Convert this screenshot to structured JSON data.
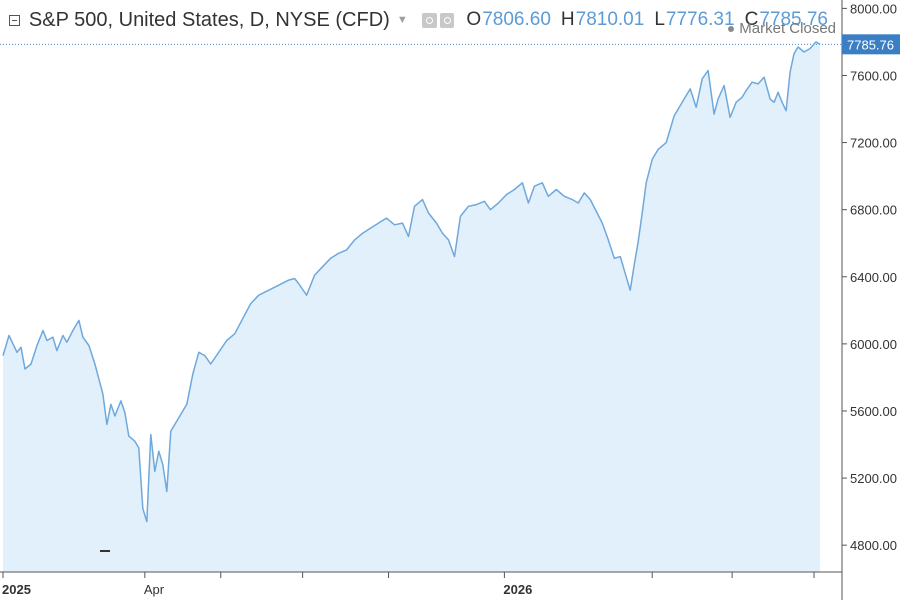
{
  "header": {
    "title": "S&P 500, United States, D, NYSE (CFD)",
    "open_key": "O",
    "open": "7806.60",
    "high_key": "H",
    "high": "7810.01",
    "low_key": "L",
    "low": "7776.31",
    "close_key": "C",
    "close": "7785.76",
    "status": "Market Closed",
    "collapse_icon": "collapse-icon",
    "settings_icon": "gear-icon"
  },
  "colors": {
    "line": "#6fa8dc",
    "area": "#e1f0fa",
    "price_tag": "#3a7fc4",
    "price_line": "#4a86c8"
  },
  "chart_data": {
    "type": "area",
    "symbol": "S&P 500",
    "last_price": 7785.76,
    "ylim": [
      4640,
      8050
    ],
    "y_ticks": [
      4800,
      5200,
      5600,
      6000,
      6400,
      6800,
      7200,
      7600,
      8000
    ],
    "y_tick_labels": [
      "4800.00",
      "5200.00",
      "5600.00",
      "6000.00",
      "6400.00",
      "6800.00",
      "7200.00",
      "7600.00",
      "8000.00"
    ],
    "x_labels": [
      {
        "label": "2025",
        "x": 0
      },
      {
        "label": "Apr",
        "x": 71
      },
      {
        "label": "2026",
        "x": 251
      }
    ],
    "x_unlabeled_ticks": [
      109,
      150,
      193,
      325,
      365,
      406
    ],
    "xlim": [
      0,
      415
    ],
    "series": [
      {
        "points": [
          [
            0,
            5930
          ],
          [
            3,
            6050
          ],
          [
            7,
            5950
          ],
          [
            9,
            5980
          ],
          [
            11,
            5850
          ],
          [
            14,
            5880
          ],
          [
            17,
            5990
          ],
          [
            20,
            6080
          ],
          [
            22,
            6020
          ],
          [
            25,
            6040
          ],
          [
            27,
            5960
          ],
          [
            30,
            6050
          ],
          [
            32,
            6010
          ],
          [
            35,
            6080
          ],
          [
            38,
            6140
          ],
          [
            40,
            6040
          ],
          [
            43,
            5990
          ],
          [
            46,
            5880
          ],
          [
            48,
            5790
          ],
          [
            50,
            5700
          ],
          [
            52,
            5520
          ],
          [
            54,
            5640
          ],
          [
            56,
            5570
          ],
          [
            59,
            5660
          ],
          [
            61,
            5590
          ],
          [
            63,
            5450
          ],
          [
            66,
            5420
          ],
          [
            68,
            5380
          ],
          [
            70,
            5020
          ],
          [
            72,
            4940
          ],
          [
            74,
            5460
          ],
          [
            76,
            5240
          ],
          [
            78,
            5360
          ],
          [
            80,
            5280
          ],
          [
            82,
            5120
          ],
          [
            84,
            5480
          ],
          [
            88,
            5560
          ],
          [
            92,
            5640
          ],
          [
            95,
            5820
          ],
          [
            98,
            5950
          ],
          [
            101,
            5930
          ],
          [
            104,
            5880
          ],
          [
            108,
            5950
          ],
          [
            112,
            6020
          ],
          [
            116,
            6060
          ],
          [
            120,
            6150
          ],
          [
            124,
            6240
          ],
          [
            128,
            6290
          ],
          [
            133,
            6320
          ],
          [
            138,
            6350
          ],
          [
            143,
            6380
          ],
          [
            146,
            6390
          ],
          [
            148,
            6360
          ],
          [
            152,
            6290
          ],
          [
            156,
            6410
          ],
          [
            160,
            6460
          ],
          [
            164,
            6510
          ],
          [
            168,
            6540
          ],
          [
            172,
            6560
          ],
          [
            176,
            6620
          ],
          [
            180,
            6660
          ],
          [
            184,
            6690
          ],
          [
            188,
            6720
          ],
          [
            192,
            6750
          ],
          [
            196,
            6710
          ],
          [
            200,
            6720
          ],
          [
            203,
            6640
          ],
          [
            206,
            6820
          ],
          [
            210,
            6860
          ],
          [
            213,
            6780
          ],
          [
            217,
            6720
          ],
          [
            220,
            6660
          ],
          [
            223,
            6620
          ],
          [
            226,
            6520
          ],
          [
            229,
            6760
          ],
          [
            233,
            6820
          ],
          [
            237,
            6830
          ],
          [
            241,
            6850
          ],
          [
            244,
            6800
          ],
          [
            248,
            6840
          ],
          [
            252,
            6890
          ],
          [
            256,
            6920
          ],
          [
            260,
            6960
          ],
          [
            263,
            6840
          ],
          [
            266,
            6940
          ],
          [
            270,
            6960
          ],
          [
            273,
            6880
          ],
          [
            277,
            6920
          ],
          [
            281,
            6880
          ],
          [
            285,
            6860
          ],
          [
            288,
            6840
          ],
          [
            291,
            6900
          ],
          [
            294,
            6860
          ],
          [
            297,
            6790
          ],
          [
            300,
            6720
          ],
          [
            303,
            6620
          ],
          [
            306,
            6510
          ],
          [
            309,
            6520
          ],
          [
            312,
            6400
          ],
          [
            314,
            6320
          ],
          [
            316,
            6470
          ],
          [
            318,
            6610
          ],
          [
            320,
            6780
          ],
          [
            322,
            6960
          ],
          [
            325,
            7100
          ],
          [
            328,
            7160
          ],
          [
            332,
            7200
          ],
          [
            336,
            7360
          ],
          [
            340,
            7440
          ],
          [
            344,
            7520
          ],
          [
            347,
            7410
          ],
          [
            350,
            7580
          ],
          [
            353,
            7630
          ],
          [
            356,
            7370
          ],
          [
            358,
            7460
          ],
          [
            361,
            7540
          ],
          [
            364,
            7350
          ],
          [
            367,
            7440
          ],
          [
            370,
            7470
          ],
          [
            372,
            7510
          ],
          [
            375,
            7560
          ],
          [
            378,
            7550
          ],
          [
            381,
            7590
          ],
          [
            384,
            7460
          ],
          [
            386,
            7440
          ],
          [
            388,
            7500
          ],
          [
            390,
            7440
          ],
          [
            392,
            7390
          ],
          [
            394,
            7620
          ],
          [
            396,
            7730
          ],
          [
            398,
            7770
          ],
          [
            401,
            7740
          ],
          [
            404,
            7760
          ],
          [
            407,
            7800
          ],
          [
            409,
            7786
          ]
        ]
      }
    ]
  }
}
